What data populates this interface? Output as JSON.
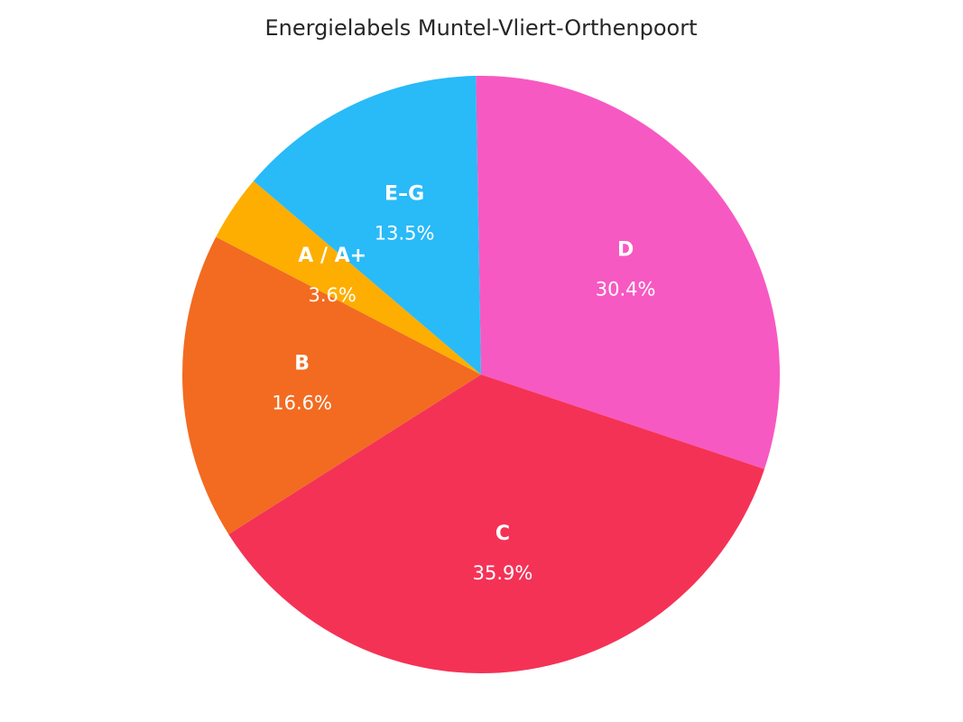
{
  "chart_data": {
    "type": "pie",
    "title": "Energielabels Muntel-Vliert-Orthenpoort",
    "start_angle_deg": 91,
    "direction": "clockwise",
    "slices": [
      {
        "label": "D",
        "value": 30.4,
        "pct_label": "30.4%",
        "color": "#f759c2"
      },
      {
        "label": "C",
        "value": 35.9,
        "pct_label": "35.9%",
        "color": "#f43256"
      },
      {
        "label": "B",
        "value": 16.6,
        "pct_label": "16.6%",
        "color": "#f26b21"
      },
      {
        "label": "A / A+",
        "value": 3.6,
        "pct_label": "3.6%",
        "color": "#fdae00"
      },
      {
        "label": "E–G",
        "value": 13.5,
        "pct_label": "13.5%",
        "color": "#29baf8"
      }
    ]
  }
}
